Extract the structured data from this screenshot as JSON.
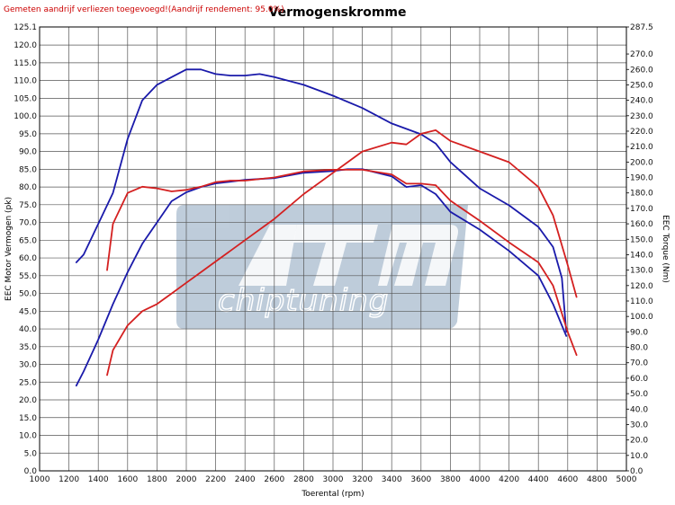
{
  "chart_data": {
    "type": "line",
    "title": "Vermogenskromme",
    "note": "Gemeten aandrijf verliezen toegevoegd!(Aandrijf rendement: 95.0%)",
    "xlabel": "Toerental (rpm)",
    "ylabel_left": "EEC Motor Vermogen (pk)",
    "ylabel_right": "EEC Torque (Nm)",
    "xlim": [
      1000,
      5000
    ],
    "ylim_left": [
      0,
      125.1
    ],
    "ylim_right": [
      0,
      287.5
    ],
    "x_ticks": [
      1000,
      1200,
      1400,
      1600,
      1800,
      2000,
      2200,
      2400,
      2600,
      2800,
      3000,
      3200,
      3400,
      3600,
      3800,
      4000,
      4200,
      4400,
      4600,
      4800,
      5000
    ],
    "y_ticks_left": [
      "0.0",
      "5.0",
      "10.0",
      "15.0",
      "20.0",
      "25.0",
      "30.0",
      "35.0",
      "40.0",
      "45.0",
      "50.0",
      "55.0",
      "60.0",
      "65.0",
      "70.0",
      "75.0",
      "80.0",
      "85.0",
      "90.0",
      "95.0",
      "100.0",
      "105.0",
      "110.0",
      "115.0",
      "120.0",
      "125.1"
    ],
    "y_ticks_right": [
      "0.0",
      "10.0",
      "20.0",
      "30.0",
      "40.0",
      "50.0",
      "60.0",
      "70.0",
      "80.0",
      "90.0",
      "100.0",
      "110.0",
      "120.0",
      "130.0",
      "140.0",
      "150.0",
      "160.0",
      "170.0",
      "180.0",
      "190.0",
      "200.0",
      "210.0",
      "220.0",
      "230.0",
      "240.0",
      "250.0",
      "260.0",
      "270.0",
      "287.5"
    ],
    "grid": true,
    "watermark": "chiptuning",
    "series": [
      {
        "color": "#1a1aaa",
        "axis": "left",
        "x": [
          1250,
          1300,
          1400,
          1500,
          1600,
          1700,
          1800,
          1900,
          2000,
          2100,
          2200,
          2300,
          2400,
          2600,
          2800,
          3000,
          3100,
          3200,
          3400,
          3500,
          3600,
          3700,
          3800,
          4000,
          4200,
          4400,
          4500,
          4560,
          4590
        ],
        "values": [
          24,
          28,
          37,
          47,
          56,
          64,
          70,
          76,
          78.5,
          80,
          81,
          81.5,
          82,
          82.5,
          84,
          84.5,
          85,
          85,
          83,
          80,
          80.5,
          78,
          73,
          68,
          62,
          55,
          47,
          41,
          38
        ]
      },
      {
        "color": "#1a1aaa",
        "axis": "right",
        "x": [
          1250,
          1300,
          1400,
          1500,
          1600,
          1700,
          1800,
          1900,
          2000,
          2100,
          2200,
          2300,
          2400,
          2500,
          2600,
          2800,
          3000,
          3200,
          3400,
          3600,
          3700,
          3800,
          4000,
          4200,
          4400,
          4500,
          4560,
          4590
        ],
        "values": [
          135,
          140,
          160,
          180,
          215,
          240,
          250,
          255,
          260,
          260,
          257,
          256,
          256,
          257,
          255,
          250,
          243,
          235,
          225,
          218,
          212,
          200,
          183,
          172,
          158,
          145,
          125,
          90
        ]
      },
      {
        "color": "#d42020",
        "axis": "left",
        "x": [
          1460,
          1500,
          1600,
          1700,
          1800,
          1900,
          2000,
          2100,
          2200,
          2300,
          2400,
          2600,
          2800,
          3000,
          3100,
          3200,
          3400,
          3500,
          3600,
          3700,
          3800,
          4000,
          4200,
          4400,
          4500,
          4600,
          4660
        ],
        "values": [
          27,
          34,
          41,
          45,
          47,
          50,
          53,
          56,
          59,
          62,
          65,
          71,
          78,
          84,
          87,
          90,
          92.5,
          92,
          95,
          96,
          93,
          90,
          87,
          80,
          72,
          58,
          49
        ]
      },
      {
        "color": "#d42020",
        "axis": "right",
        "x": [
          1460,
          1500,
          1600,
          1700,
          1800,
          1900,
          2000,
          2100,
          2200,
          2300,
          2400,
          2600,
          2800,
          3000,
          3200,
          3400,
          3500,
          3600,
          3700,
          3800,
          4000,
          4200,
          4400,
          4500,
          4600,
          4660
        ],
        "values": [
          130,
          160,
          180,
          184,
          183,
          181,
          182,
          184,
          187,
          188,
          188,
          190,
          194,
          195,
          195,
          192,
          186,
          186,
          185,
          175,
          162,
          148,
          135,
          120,
          90,
          75
        ]
      }
    ]
  }
}
